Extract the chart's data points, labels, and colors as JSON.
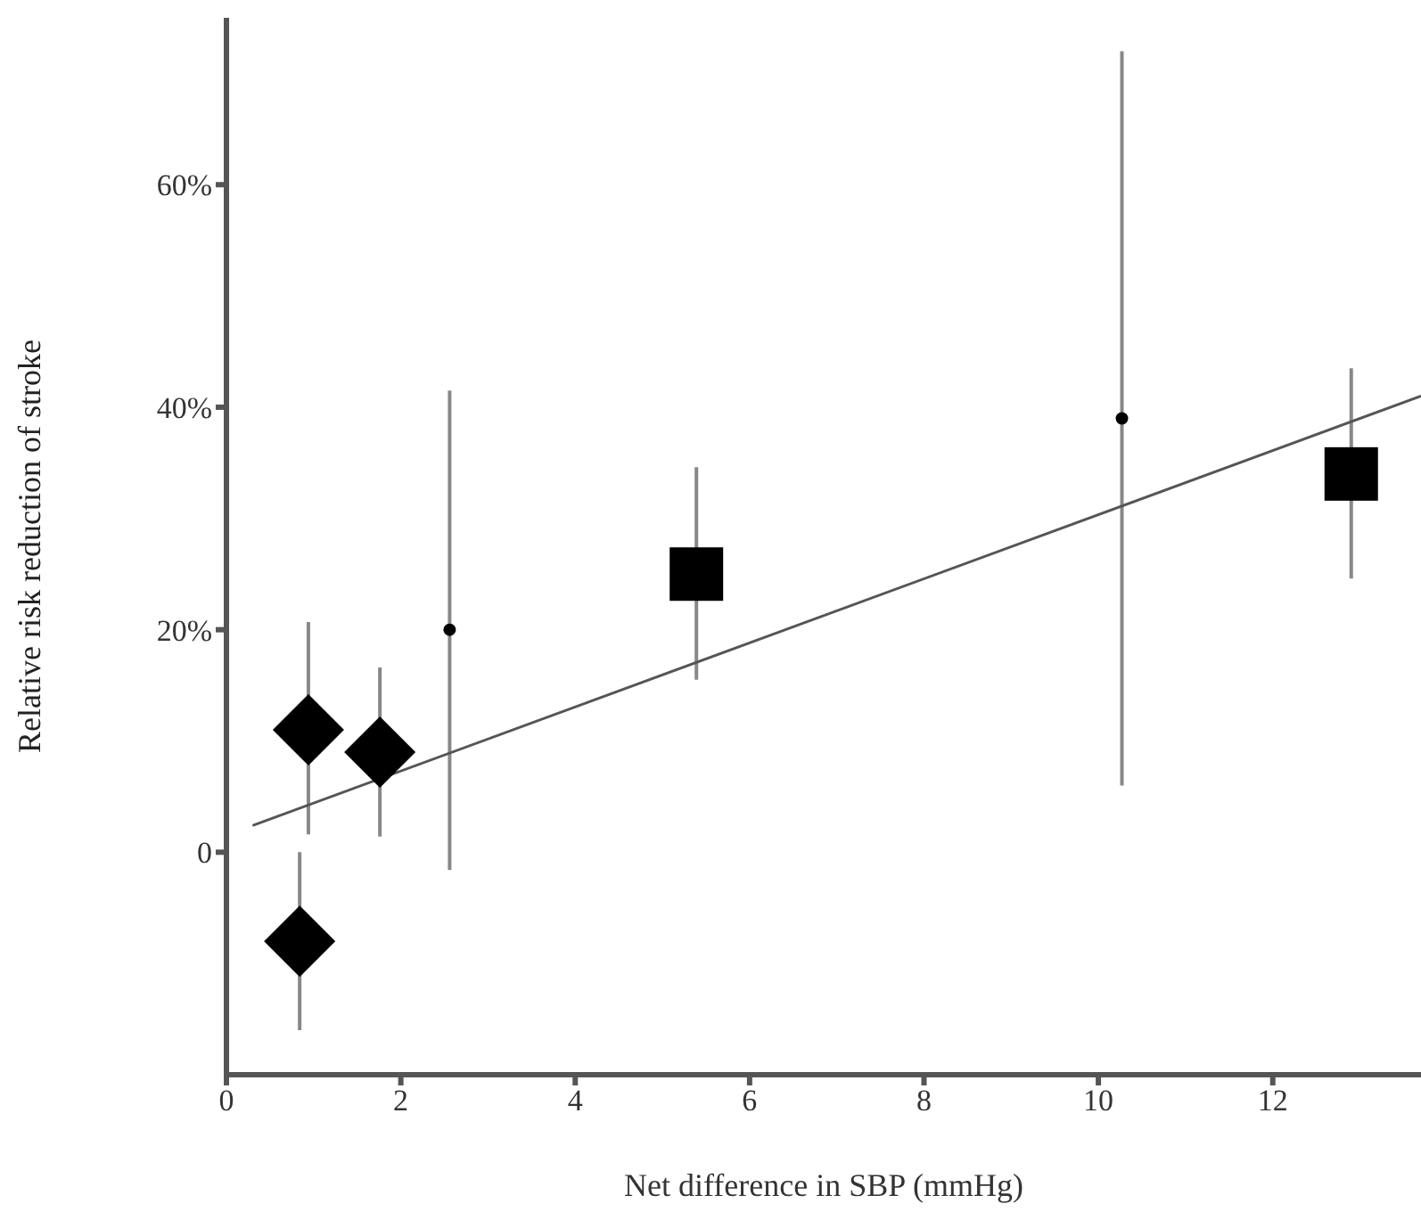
{
  "chart_data": {
    "type": "scatter",
    "xlabel": "Net difference in SBP (mmHg)",
    "ylabel": "Relative risk reduction of stroke",
    "xlim": [
      0,
      13.7
    ],
    "xticks": [
      0,
      2,
      4,
      6,
      8,
      10,
      12
    ],
    "ylim": [
      -20,
      75
    ],
    "yticks": [
      0,
      {
        "value": 20,
        "label": "20%"
      },
      {
        "value": 40,
        "label": "40%"
      },
      {
        "value": 60,
        "label": "60%"
      }
    ],
    "series": [
      {
        "marker": "diamond",
        "color": "#000000",
        "x": [
          0.84,
          0.94,
          1.76
        ],
        "values": [
          -8,
          11,
          9
        ],
        "errors": [
          [
            -16,
            0
          ],
          [
            1.6,
            20.7
          ],
          [
            1.4,
            16.6
          ]
        ]
      },
      {
        "marker": "circle",
        "color": "#000000",
        "x": [
          2.56
        ],
        "values": [
          20
        ],
        "errors": [
          [
            -1.6,
            41.5
          ]
        ]
      },
      {
        "marker": "square",
        "color": "#000000",
        "x": [
          5.39,
          12.9
        ],
        "values": [
          25,
          34
        ],
        "errors": [
          [
            15.5,
            34.6
          ],
          [
            24.6,
            43.5
          ]
        ]
      },
      {
        "marker": "circle",
        "color": "#000000",
        "x": [
          10.27
        ],
        "values": [
          39
        ],
        "errors": [
          [
            6,
            72
          ]
        ]
      },
      {
        "type": "line",
        "color": "#555555",
        "x": [
          0.3,
          13.7
        ],
        "values": [
          2.4,
          41
        ]
      }
    ]
  }
}
